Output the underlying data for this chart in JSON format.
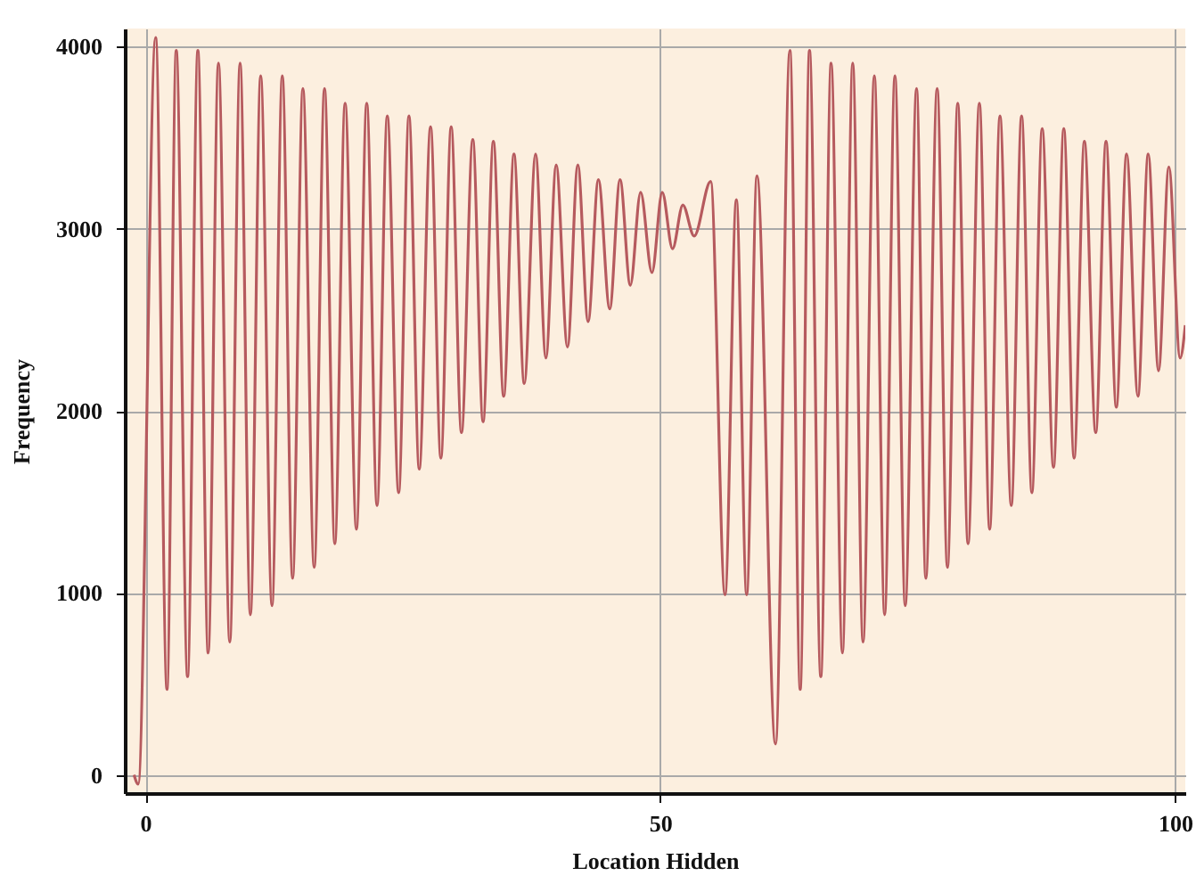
{
  "chart_data": {
    "type": "line",
    "xlabel": "Location Hidden",
    "ylabel": "Frequency",
    "xlim": [
      -2,
      101
    ],
    "ylim": [
      -100,
      4100
    ],
    "xticks": [
      0,
      50,
      100
    ],
    "yticks": [
      0,
      1000,
      2000,
      3000,
      4000
    ],
    "grid": true,
    "marker": "none",
    "line_style": "solid",
    "series": [
      {
        "color": "#b65a5e",
        "x": [
          -1.1,
          -0.7,
          1.0,
          2.1,
          3.0,
          4.1,
          5.1,
          6.1,
          7.1,
          8.2,
          9.2,
          10.2,
          11.2,
          12.3,
          13.3,
          14.3,
          15.3,
          16.4,
          17.4,
          18.4,
          19.4,
          20.5,
          21.5,
          22.5,
          23.5,
          24.6,
          25.6,
          26.6,
          27.7,
          28.7,
          29.7,
          30.7,
          31.8,
          32.8,
          33.8,
          34.8,
          35.8,
          36.8,
          37.9,
          38.9,
          39.9,
          41.0,
          42.0,
          43.0,
          44.0,
          45.1,
          46.1,
          47.1,
          48.1,
          49.2,
          50.2,
          51.2,
          52.2,
          53.3,
          54.9,
          56.3,
          57.4,
          58.4,
          59.4,
          61.2,
          62.6,
          63.6,
          64.5,
          65.6,
          66.6,
          67.7,
          68.7,
          69.7,
          70.8,
          71.8,
          72.8,
          73.8,
          74.9,
          75.8,
          76.9,
          77.9,
          78.9,
          79.9,
          81.0,
          82.0,
          83.0,
          84.1,
          85.1,
          86.1,
          87.1,
          88.2,
          89.2,
          90.2,
          91.2,
          92.3,
          93.3,
          94.3,
          95.3,
          96.4,
          97.4,
          98.4,
          99.4,
          100.5,
          101
        ],
        "values": [
          0,
          -50,
          4050,
          470,
          3980,
          540,
          3980,
          670,
          3910,
          730,
          3910,
          880,
          3840,
          930,
          3840,
          1080,
          3770,
          1140,
          3770,
          1270,
          3690,
          1350,
          3690,
          1480,
          3620,
          1550,
          3620,
          1680,
          3560,
          1740,
          3560,
          1880,
          3490,
          1940,
          3480,
          2080,
          3410,
          2150,
          3410,
          2290,
          3350,
          2350,
          3350,
          2490,
          3270,
          2560,
          3270,
          2690,
          3200,
          2760,
          3200,
          2890,
          3130,
          2960,
          3260,
          990,
          3160,
          990,
          3290,
          170,
          3980,
          470,
          3980,
          540,
          3910,
          670,
          3910,
          730,
          3840,
          880,
          3840,
          930,
          3770,
          1080,
          3770,
          1140,
          3690,
          1270,
          3690,
          1350,
          3620,
          1480,
          3620,
          1550,
          3550,
          1690,
          3550,
          1740,
          3480,
          1880,
          3480,
          2020,
          3410,
          2080,
          3410,
          2220,
          3340,
          2290,
          2470
        ]
      }
    ]
  }
}
